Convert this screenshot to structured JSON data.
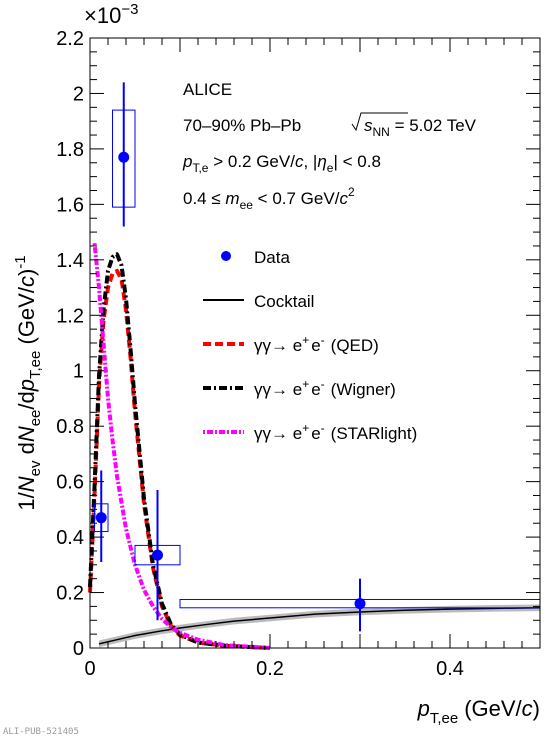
{
  "chart_data": {
    "type": "scatter",
    "xlim": [
      0,
      0.5
    ],
    "ylim": [
      0,
      2.2
    ],
    "y_multiplier": "×10",
    "y_multiplier_exp": "−3",
    "xticks": [
      0,
      0.1,
      0.2,
      0.3,
      0.4,
      0.5
    ],
    "xtick_labels": [
      "0",
      "0.2",
      "0.4"
    ],
    "xtick_label_values": [
      0,
      0.2,
      0.4
    ],
    "yticks": [
      0,
      0.2,
      0.4,
      0.6,
      0.8,
      1.0,
      1.2,
      1.4,
      1.6,
      1.8,
      2.0,
      2.2
    ],
    "ytick_labels": [
      "0",
      "0.2",
      "0.4",
      "0.6",
      "0.8",
      "1",
      "1.2",
      "1.4",
      "1.6",
      "1.8",
      "2",
      "2.2"
    ],
    "xlabel": {
      "p": "p",
      "sub": "T,ee",
      "unit": "(GeV/",
      "unit_c": "c",
      "close": ")"
    },
    "ylabel": {
      "a": "1/",
      "N": "N",
      "ev": "ev",
      "d1": " d",
      "N2": "N",
      "ee": "ee",
      "slash": "/d",
      "p": "p",
      "sub": "T,ee",
      "unit": " (GeV/",
      "c": "c",
      "close": ")",
      "exp": "-1"
    },
    "annotations": {
      "experiment": "ALICE",
      "system_pre": "70–90% Pb–Pb ",
      "snn_s": "s",
      "snn_sub": "NN",
      "system_post": " = 5.02 TeV",
      "cut1_p": "p",
      "cut1_sub": "T,e",
      "cut1_mid": " > 0.2 GeV/",
      "cut1_c": "c",
      "cut1_mid2": ", |",
      "cut1_eta": "η",
      "cut1_etasub": "e",
      "cut1_end": "| < 0.8",
      "cut2_pre": "0.4 ≤ ",
      "cut2_m": "m",
      "cut2_sub": "ee",
      "cut2_mid": " < 0.7 GeV/",
      "cut2_c": "c",
      "cut2_exp": "2"
    },
    "data_points": [
      {
        "x": 0.0125,
        "y": 0.47,
        "stat_lo": 0.31,
        "stat_hi": 0.64,
        "sys_x_lo": 0.005,
        "sys_x_hi": 0.02,
        "sys_lo": 0.42,
        "sys_hi": 0.52
      },
      {
        "x": 0.075,
        "y": 0.335,
        "stat_lo": 0.1,
        "stat_hi": 0.57,
        "sys_x_lo": 0.05,
        "sys_x_hi": 0.1,
        "sys_lo": 0.3,
        "sys_hi": 0.37
      },
      {
        "x": 0.3,
        "y": 0.16,
        "stat_lo": 0.06,
        "stat_hi": 0.25,
        "sys_x_lo": 0.1,
        "sys_x_hi": 0.5,
        "sys_lo": 0.145,
        "sys_hi": 0.175
      },
      {
        "x": 0.0375,
        "y": 1.77,
        "stat_lo": 1.52,
        "stat_hi": 2.04,
        "sys_x_lo": 0.025,
        "sys_x_hi": 0.05,
        "sys_lo": 1.59,
        "sys_hi": 1.94
      }
    ],
    "cocktail": {
      "x": [
        0.01,
        0.03,
        0.05,
        0.08,
        0.1,
        0.13,
        0.16,
        0.2,
        0.25,
        0.3,
        0.35,
        0.4,
        0.45,
        0.5
      ],
      "y": [
        0.015,
        0.03,
        0.045,
        0.062,
        0.072,
        0.085,
        0.097,
        0.108,
        0.122,
        0.13,
        0.136,
        0.14,
        0.143,
        0.145
      ],
      "band_halfwidth": 0.012
    },
    "series": [
      {
        "name": "γγ→ e⁺e⁻ (QED)",
        "color": "#ff0000",
        "style": "dashed",
        "x": [
          0.0,
          0.005,
          0.01,
          0.015,
          0.02,
          0.025,
          0.03,
          0.035,
          0.04,
          0.045,
          0.05,
          0.06,
          0.07,
          0.08,
          0.09,
          0.1,
          0.12,
          0.15,
          0.2
        ],
        "y": [
          0.2,
          0.55,
          0.95,
          1.18,
          1.3,
          1.35,
          1.36,
          1.33,
          1.22,
          1.05,
          0.85,
          0.52,
          0.29,
          0.15,
          0.08,
          0.045,
          0.02,
          0.008,
          0.0
        ]
      },
      {
        "name": "γγ→ e⁺e⁻ (Wigner)",
        "color": "#000000",
        "style": "dashdot",
        "x": [
          0.0,
          0.005,
          0.01,
          0.015,
          0.02,
          0.025,
          0.03,
          0.035,
          0.04,
          0.045,
          0.05,
          0.06,
          0.07,
          0.08,
          0.09,
          0.1,
          0.12,
          0.15,
          0.2
        ],
        "y": [
          0.22,
          0.58,
          0.98,
          1.22,
          1.36,
          1.41,
          1.42,
          1.38,
          1.26,
          1.08,
          0.88,
          0.54,
          0.3,
          0.16,
          0.085,
          0.048,
          0.02,
          0.008,
          0.0
        ]
      },
      {
        "name": "γγ→ e⁺e⁻ (STARlight)",
        "color": "#ff00ff",
        "style": "dotted",
        "x": [
          0.005,
          0.01,
          0.015,
          0.02,
          0.025,
          0.03,
          0.04,
          0.05,
          0.06,
          0.07,
          0.08,
          0.09,
          0.1,
          0.12,
          0.15,
          0.2
        ],
        "y": [
          1.46,
          1.3,
          1.1,
          0.9,
          0.75,
          0.62,
          0.43,
          0.3,
          0.21,
          0.15,
          0.105,
          0.075,
          0.055,
          0.03,
          0.01,
          0.0
        ]
      }
    ],
    "legend": {
      "data": "Data",
      "cocktail": "Cocktail",
      "gg": "γγ→ e",
      "plus": "+",
      "e2": "e",
      "minus": "-",
      "qed": "(QED)",
      "wigner": "(Wigner)",
      "starlight": "(STARlight)"
    },
    "pub_id": "ALI-PUB-521405"
  }
}
